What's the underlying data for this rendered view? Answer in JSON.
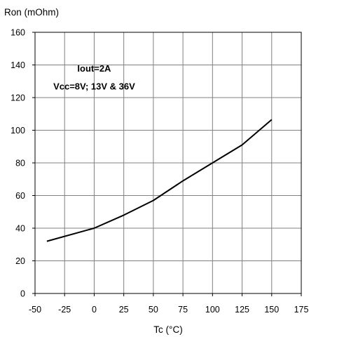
{
  "chart_data": {
    "type": "line",
    "title": "",
    "xlabel": "Tc (°C)",
    "ylabel": "Ron (mOhm)",
    "xlim": [
      -50,
      175
    ],
    "ylim": [
      0,
      160
    ],
    "x_ticks": [
      -50,
      -25,
      0,
      25,
      50,
      75,
      100,
      125,
      150,
      175
    ],
    "y_ticks": [
      0,
      20,
      40,
      60,
      80,
      100,
      120,
      140,
      160
    ],
    "grid": true,
    "annotations": [
      {
        "text": "Iout=2A",
        "x": 0,
        "y": 136
      },
      {
        "text": "Vcc=8V; 13V & 36V",
        "x": 0,
        "y": 125
      }
    ],
    "series": [
      {
        "x": [
          -40,
          0,
          25,
          50,
          75,
          100,
          125,
          150
        ],
        "y": [
          32,
          40,
          48,
          57,
          69,
          80,
          91,
          106.5
        ],
        "color": "#000000"
      }
    ]
  }
}
